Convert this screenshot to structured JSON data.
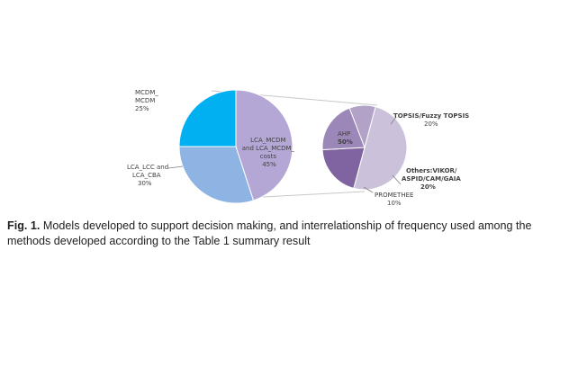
{
  "chart_data": [
    {
      "type": "pie",
      "slices": [
        {
          "name": "LCA_MCDM and LCA_MCDM_ costs",
          "value": 45,
          "color": "#B4A7D6"
        },
        {
          "name": "LCA_LCC and LCA_CBA",
          "value": 30,
          "color": "#8DB4E2"
        },
        {
          "name": "MCDM_ MCDM",
          "value": 25,
          "color": "#00B0F0"
        }
      ]
    },
    {
      "type": "pie",
      "slices": [
        {
          "name": "AHP",
          "value": 50,
          "color": "#CCC1DA"
        },
        {
          "name": "TOPSIS/Fuzzy TOPSIS",
          "value": 20,
          "color": "#8064A2"
        },
        {
          "name": "Others:VIKOR/ ASPID/CAM/GAIA",
          "value": 20,
          "color": "#9B87B8"
        },
        {
          "name": "PROMETHEE",
          "value": 10,
          "color": "#B2A2C7"
        }
      ]
    }
  ],
  "labels": {
    "lca_mcdm": [
      "LCA_MCDM",
      "and LCA_MCDM_",
      "costs",
      "45%"
    ],
    "lca_lcc": [
      "LCA_LCC and",
      "LCA_CBA",
      "30%"
    ],
    "mcdm": [
      "MCDM_",
      "MCDM",
      "25%"
    ],
    "ahp": [
      "AHP",
      "50%"
    ],
    "topsis": [
      "TOPSIS/Fuzzy TOPSIS",
      "20%"
    ],
    "others": [
      "Others:VIKOR/",
      "ASPID/CAM/GAIA",
      "20%"
    ],
    "promethee": [
      "PROMETHEE",
      "10%"
    ]
  },
  "caption": {
    "prefix": "Fig. 1.",
    "text": " Models developed to support decision making, and interrelationship of frequency used among the methods developed according to the Table 1 summary result"
  }
}
